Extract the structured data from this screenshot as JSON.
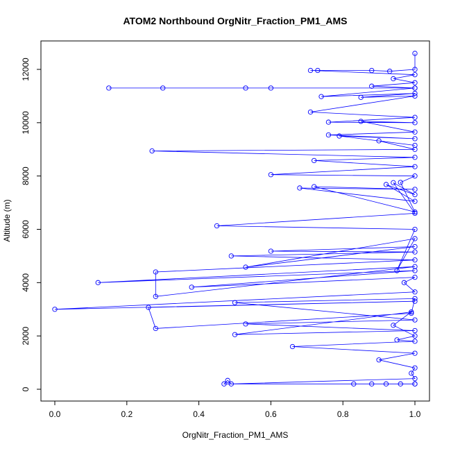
{
  "chart_data": {
    "type": "line",
    "title": "ATOM2 Northbound OrgNitr_Fraction_PM1_AMS",
    "xlabel": "OrgNitr_Fraction_PM1_AMS",
    "ylabel": "Altitude (m)",
    "xlim": [
      0,
      1
    ],
    "ylim": [
      0,
      12600
    ],
    "xticks": [
      0.0,
      0.2,
      0.4,
      0.6,
      0.8,
      1.0
    ],
    "xtick_labels": [
      "0.0",
      "0.2",
      "0.4",
      "0.6",
      "0.8",
      "1.0"
    ],
    "yticks": [
      0,
      2000,
      4000,
      6000,
      8000,
      10000,
      12000
    ],
    "ytick_labels": [
      "0",
      "2000",
      "4000",
      "6000",
      "8000",
      "10000",
      "12000"
    ],
    "grid": false,
    "color": "#0000ff",
    "marker": "open-circle",
    "series": [
      {
        "x": [
          1.0,
          0.83,
          0.88,
          0.92,
          0.96,
          1.0,
          0.47,
          0.48,
          0.49,
          1.0,
          0.99,
          1.0,
          0.9,
          1.0,
          0.66,
          1.0,
          0.95,
          1.0,
          0.94,
          0.99,
          0.5,
          1.0,
          0.53,
          1.0,
          0.5,
          1.0,
          0.99,
          0.28,
          0.26,
          1.0,
          0.0,
          1.0,
          0.97,
          1.0,
          0.38,
          1.0,
          0.12,
          1.0,
          0.28,
          0.28,
          1.0,
          0.49,
          1.0,
          0.6,
          1.0,
          0.53,
          1.0,
          0.95,
          1.0,
          0.45,
          1.0,
          0.94,
          1.0,
          0.92,
          1.0,
          0.68,
          1.0,
          0.72,
          1.0,
          0.96,
          1.0,
          0.6,
          1.0,
          0.72,
          1.0,
          0.27,
          1.0,
          0.9,
          1.0,
          0.79,
          1.0,
          0.76,
          1.0,
          0.85,
          1.0,
          0.76,
          1.0,
          0.71,
          1.0,
          0.85,
          1.0,
          0.74,
          1.0,
          0.15,
          0.3,
          0.53,
          0.6,
          1.0,
          0.88,
          1.0,
          0.94,
          1.0,
          0.71,
          0.73,
          0.88,
          0.93,
          1.0,
          1.0
        ],
        "y": [
          200,
          200,
          200,
          200,
          200,
          200,
          200,
          330,
          200,
          400,
          600,
          800,
          1100,
          1350,
          1600,
          1800,
          1850,
          2000,
          2400,
          2900,
          2050,
          2200,
          2450,
          2600,
          3250,
          3400,
          2850,
          2280,
          3070,
          3300,
          3000,
          3650,
          4000,
          4200,
          3830,
          4450,
          4000,
          4600,
          3480,
          4400,
          4850,
          5000,
          5150,
          5180,
          5350,
          4580,
          5650,
          4450,
          6000,
          6130,
          6600,
          7750,
          7300,
          7680,
          7050,
          7550,
          7500,
          7600,
          6650,
          7760,
          8000,
          8050,
          8350,
          8580,
          8700,
          8940,
          9000,
          9320,
          9150,
          9500,
          9400,
          9540,
          9650,
          10050,
          10000,
          10020,
          10200,
          10400,
          11000,
          10950,
          11100,
          10980,
          11300,
          11300,
          11300,
          11300,
          11300,
          11300,
          11370,
          11500,
          11650,
          11800,
          11960,
          11960,
          11960,
          11930,
          12000,
          12600
        ]
      }
    ]
  }
}
